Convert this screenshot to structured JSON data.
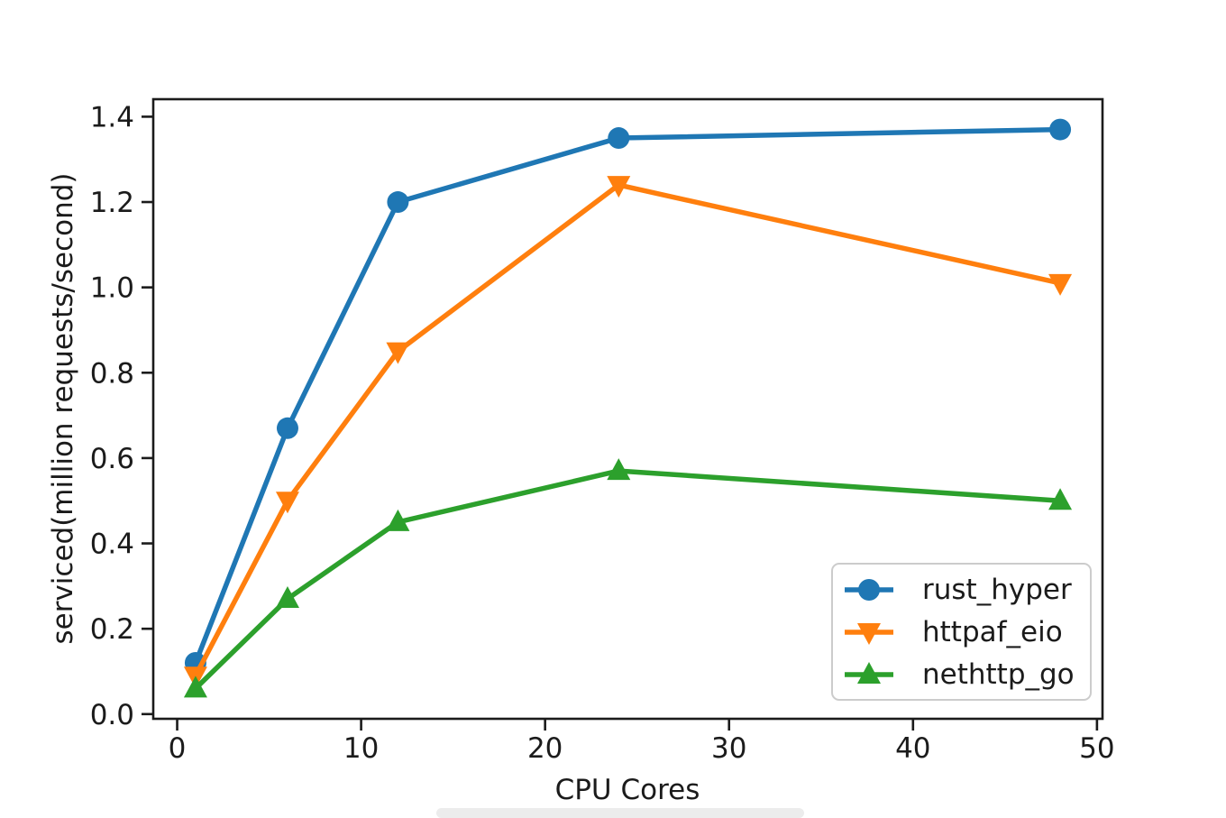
{
  "figure": {
    "background": "#ffffff",
    "text_color": "#1b1b1b",
    "axis_color": "#1b1b1b"
  },
  "chart_data": {
    "type": "line",
    "title": "",
    "xlabel": "CPU Cores",
    "ylabel": "serviced(million requests/second)",
    "x": [
      1,
      6,
      12,
      24,
      48
    ],
    "series": [
      {
        "name": "rust_hyper",
        "color": "#1f77b4",
        "marker": "circle",
        "values": [
          0.12,
          0.67,
          1.2,
          1.35,
          1.37
        ]
      },
      {
        "name": "httpaf_eio",
        "color": "#ff7f0e",
        "marker": "triangle-down",
        "values": [
          0.09,
          0.5,
          0.85,
          1.24,
          1.01
        ]
      },
      {
        "name": "nethttp_go",
        "color": "#2ca02c",
        "marker": "triangle-up",
        "values": [
          0.06,
          0.27,
          0.45,
          0.57,
          0.5
        ]
      }
    ],
    "xticks": {
      "values": [
        0,
        10,
        20,
        30,
        40,
        50
      ],
      "labels": [
        "0",
        "10",
        "20",
        "30",
        "40",
        "50"
      ]
    },
    "yticks": {
      "values": [
        0,
        0.2,
        0.4,
        0.6,
        0.8,
        1.0,
        1.2,
        1.4
      ],
      "labels": [
        "0.0",
        "0.2",
        "0.4",
        "0.6",
        "0.8",
        "1.0",
        "1.2",
        "1.4"
      ]
    },
    "xlim": [
      -1.3,
      50.3
    ],
    "ylim": [
      -0.011,
      1.441
    ],
    "grid": false,
    "legend_position": "lower right"
  }
}
